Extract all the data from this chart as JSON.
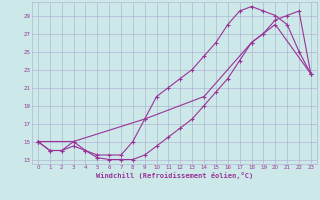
{
  "xlabel": "Windchill (Refroidissement éolien,°C)",
  "bg_color": "#cce8e8",
  "grid_color": "#aaaacc",
  "line_color": "#993399",
  "xlim": [
    -0.5,
    23.5
  ],
  "ylim": [
    12.5,
    30.5
  ],
  "xticks": [
    0,
    1,
    2,
    3,
    4,
    5,
    6,
    7,
    8,
    9,
    10,
    11,
    12,
    13,
    14,
    15,
    16,
    17,
    18,
    19,
    20,
    21,
    22,
    23
  ],
  "yticks": [
    13,
    15,
    17,
    19,
    21,
    23,
    25,
    27,
    29
  ],
  "line1_x": [
    0,
    1,
    2,
    3,
    4,
    5,
    6,
    7,
    8,
    9,
    10,
    11,
    12,
    13,
    14,
    15,
    16,
    17,
    18,
    19,
    20,
    21,
    22,
    23
  ],
  "line1_y": [
    15,
    14,
    14,
    15,
    14,
    13.5,
    13.5,
    13.5,
    15,
    17.5,
    20,
    21,
    22,
    23,
    24.5,
    26,
    28,
    29.5,
    30,
    29.5,
    29,
    28,
    25,
    22.5
  ],
  "line2_x": [
    0,
    1,
    2,
    3,
    4,
    5,
    6,
    7,
    8,
    9,
    10,
    11,
    12,
    13,
    14,
    15,
    16,
    17,
    18,
    19,
    20,
    21,
    22,
    23
  ],
  "line2_y": [
    15,
    14,
    14,
    14.5,
    14,
    13.2,
    13,
    13,
    13,
    13.5,
    14.5,
    15.5,
    16.5,
    17.5,
    19,
    20.5,
    22,
    24,
    26,
    27,
    28.5,
    29,
    29.5,
    22.5
  ],
  "line3_x": [
    0,
    3,
    9,
    14,
    18,
    19,
    20,
    23
  ],
  "line3_y": [
    15,
    15,
    17.5,
    20,
    26,
    27,
    28,
    22.5
  ]
}
